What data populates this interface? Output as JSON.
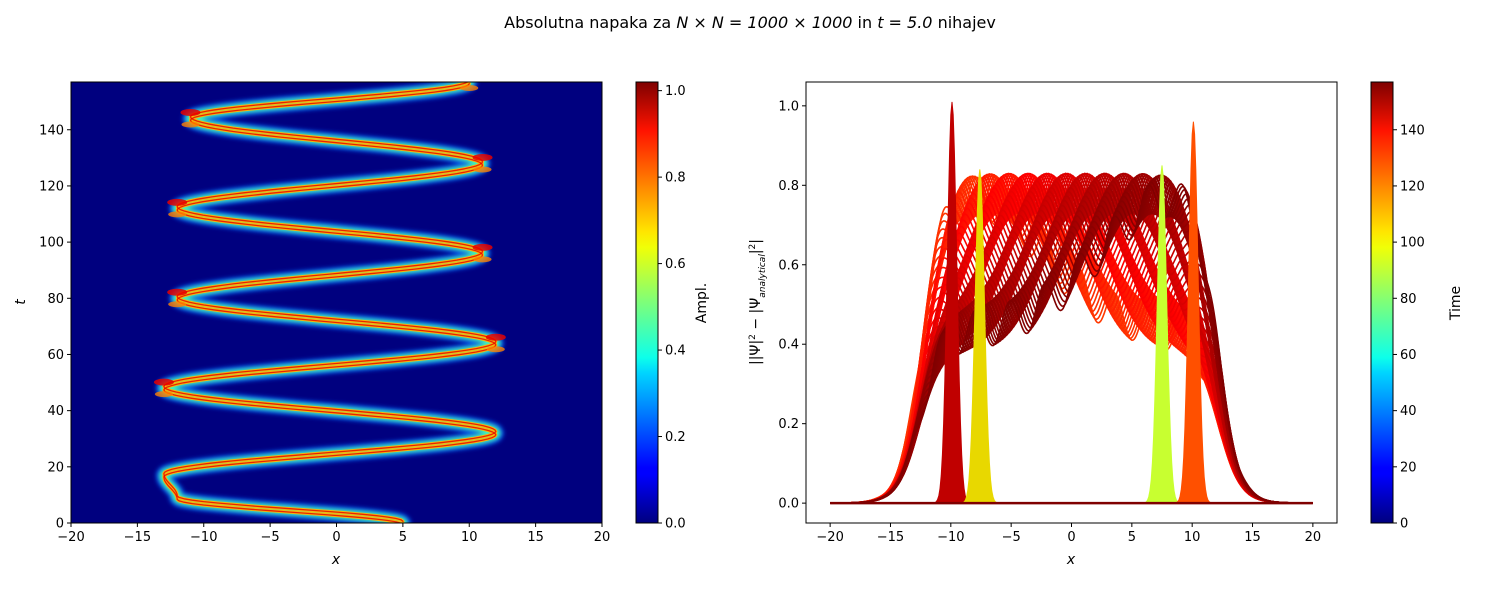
{
  "figure": {
    "title_prefix": "Absolutna napaka za ",
    "title_math": "N × N = 1000 × 1000",
    "title_mid": " in ",
    "title_math2": "t = 5.0",
    "title_suffix": " nihajev"
  },
  "chart_data": [
    {
      "type": "heatmap",
      "colormap": "jet",
      "xlabel": "x",
      "ylabel": "t",
      "xlim": [
        -20,
        20
      ],
      "ylim": [
        0,
        157
      ],
      "xticks": [
        "−20",
        "−15",
        "−10",
        "−5",
        "0",
        "5",
        "10",
        "15",
        "20"
      ],
      "xtick_values": [
        -20,
        -15,
        -10,
        -5,
        0,
        5,
        10,
        15,
        20
      ],
      "yticks": [
        "0",
        "20",
        "40",
        "60",
        "80",
        "100",
        "120",
        "140"
      ],
      "ytick_values": [
        0,
        20,
        40,
        60,
        80,
        100,
        120,
        140
      ],
      "colorbar": {
        "label": "Ampl.",
        "range": [
          0.0,
          1.02
        ],
        "ticks": [
          "0.0",
          "0.2",
          "0.4",
          "0.6",
          "0.8",
          "1.0"
        ],
        "tick_values": [
          0.0,
          0.2,
          0.4,
          0.6,
          0.8,
          1.0
        ]
      },
      "trajectory_t": [
        0,
        9,
        17,
        32,
        48,
        64,
        80,
        96,
        112,
        128,
        144,
        157
      ],
      "trajectory_x": [
        5,
        -12,
        -13,
        12,
        -13,
        12,
        -12,
        11,
        -12,
        11,
        -11,
        10
      ],
      "grid": false
    },
    {
      "type": "line",
      "colormap": "jet",
      "xlabel": "x",
      "ylabel": "||Ψ|² − |Ψ_analytical|²|",
      "xlim": [
        -22,
        22
      ],
      "ylim": [
        -0.05,
        1.06
      ],
      "xticks": [
        "−20",
        "−15",
        "−10",
        "−5",
        "0",
        "5",
        "10",
        "15",
        "20"
      ],
      "xtick_values": [
        -20,
        -15,
        -10,
        -5,
        0,
        5,
        10,
        15,
        20
      ],
      "yticks": [
        "0.0",
        "0.2",
        "0.4",
        "0.6",
        "0.8",
        "1.0"
      ],
      "ytick_values": [
        0.0,
        0.2,
        0.4,
        0.6,
        0.8,
        1.0
      ],
      "colorbar": {
        "label": "Time",
        "range": [
          0,
          157
        ],
        "ticks": [
          "0",
          "20",
          "40",
          "60",
          "80",
          "100",
          "120",
          "140"
        ],
        "tick_values": [
          0,
          20,
          40,
          60,
          80,
          100,
          120,
          140
        ]
      },
      "series_count": 80,
      "x_range": [
        -20,
        20
      ],
      "plateau_level": 0.78,
      "peaks": [
        {
          "x": -9.9,
          "y": 1.01,
          "color": "#c00000"
        },
        {
          "x": -7.6,
          "y": 0.84,
          "color": "#e8d800"
        },
        {
          "x": 7.5,
          "y": 0.85,
          "color": "#c8ff30"
        },
        {
          "x": 10.1,
          "y": 0.96,
          "color": "#ff5000"
        }
      ],
      "grid": false
    }
  ]
}
